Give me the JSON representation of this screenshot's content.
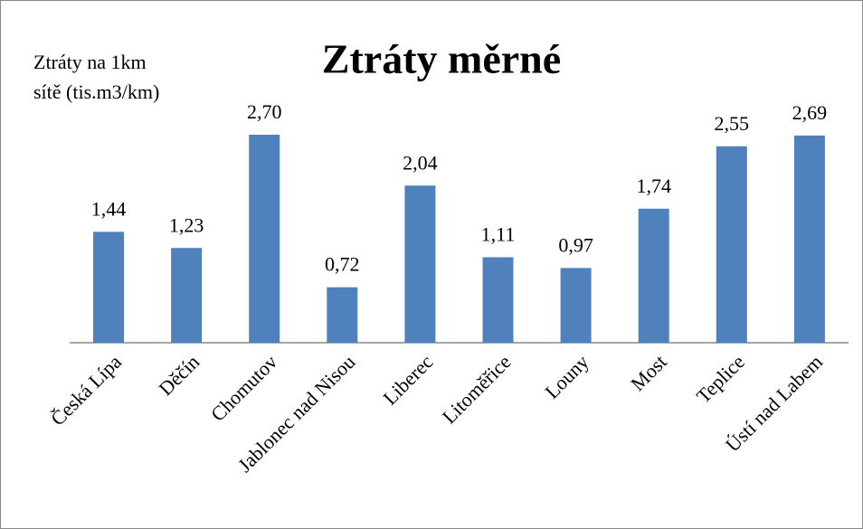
{
  "chart_data": {
    "type": "bar",
    "title": "Ztráty měrné",
    "y_axis_label": "Ztráty na 1km sítě (tis.m3/km)",
    "categories": [
      "Česká Lípa",
      "Děčín",
      "Chomutov",
      "Jablonec nad Nisou",
      "Liberec",
      "Litoměřice",
      "Louny",
      "Most",
      "Teplice",
      "Ústí nad Labem"
    ],
    "values": [
      1.44,
      1.23,
      2.7,
      0.72,
      2.04,
      1.11,
      0.97,
      1.74,
      2.55,
      2.69
    ],
    "value_labels": [
      "1,44",
      "1,23",
      "2,70",
      "0,72",
      "2,04",
      "1,11",
      "0,97",
      "1,74",
      "2,55",
      "2,69"
    ],
    "color": "#4f81bd"
  }
}
